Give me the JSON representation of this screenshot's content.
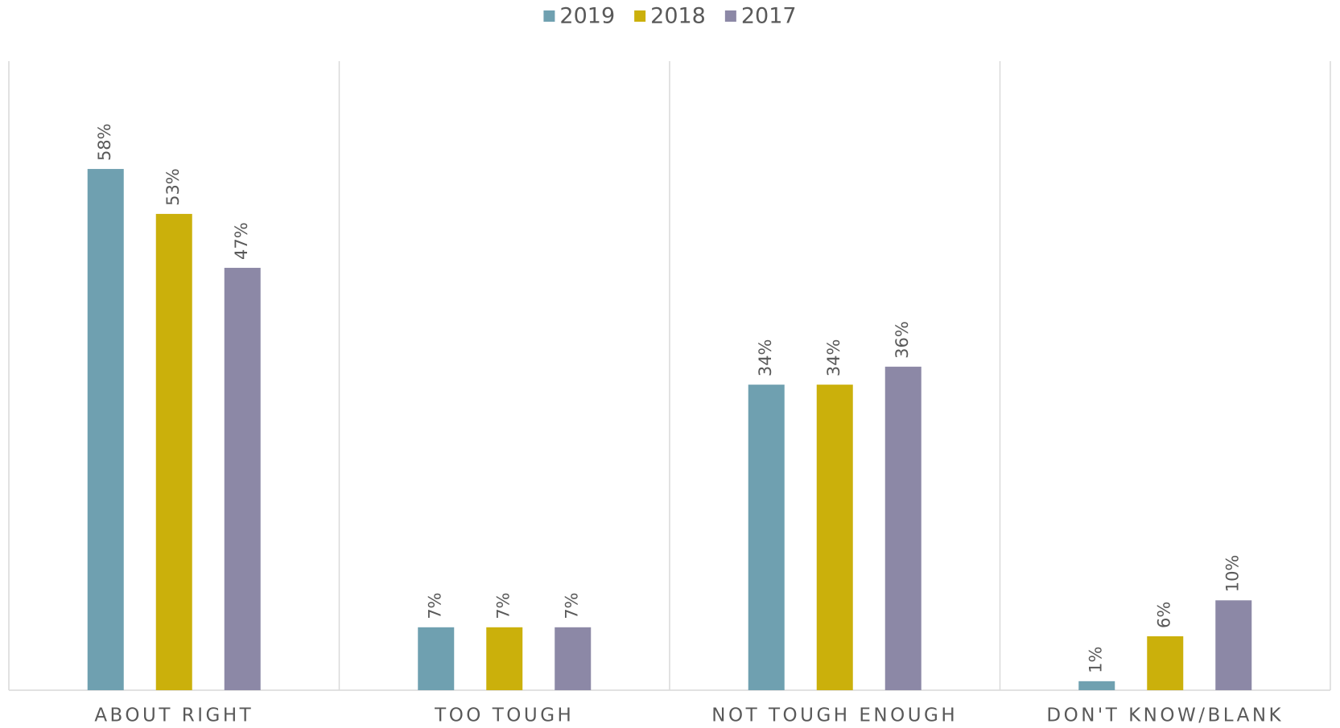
{
  "chart_data": {
    "type": "bar",
    "categories": [
      "ABOUT RIGHT",
      "TOO TOUGH",
      "NOT TOUGH ENOUGH",
      "DON'T KNOW/BLANK"
    ],
    "series": [
      {
        "name": "2019",
        "color": "#6fa0b0",
        "values": [
          58,
          7,
          34,
          1
        ],
        "value_labels": [
          "58%",
          "7%",
          "34%",
          "1%"
        ]
      },
      {
        "name": "2018",
        "color": "#cbb00b",
        "values": [
          53,
          7,
          34,
          6
        ],
        "value_labels": [
          "53%",
          "7%",
          "34%",
          "6%"
        ]
      },
      {
        "name": "2017",
        "color": "#8c88a6",
        "values": [
          47,
          7,
          36,
          10
        ],
        "value_labels": [
          "47%",
          "7%",
          "36%",
          "10%"
        ]
      }
    ],
    "ylim": [
      0,
      70
    ],
    "legend": "top"
  }
}
